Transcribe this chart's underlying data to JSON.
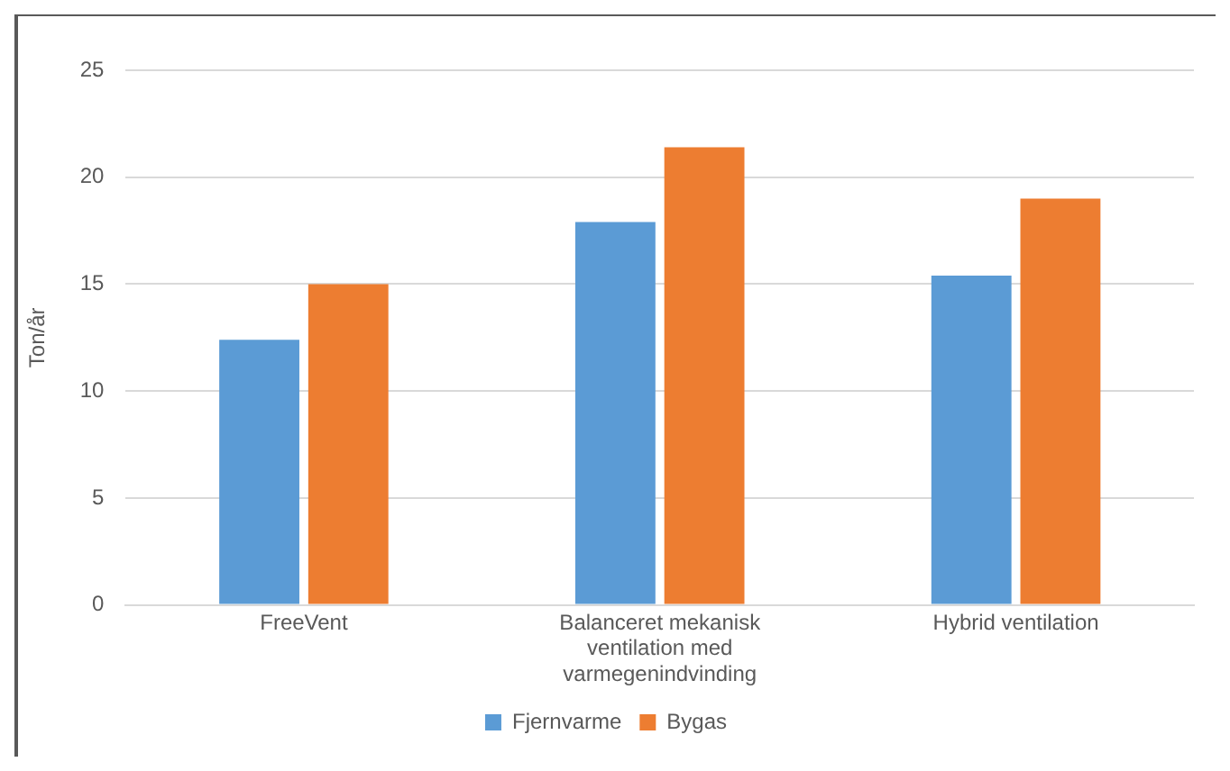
{
  "chart_data": {
    "type": "bar",
    "ylabel": "Ton/år",
    "categories": [
      "FreeVent",
      "Balanceret mekanisk ventilation med varmegenindvinding",
      "Hybrid ventilation"
    ],
    "series": [
      {
        "name": "Fjernvarme",
        "color": "#5b9bd5",
        "values": [
          12.4,
          17.9,
          15.4
        ]
      },
      {
        "name": "Bygas",
        "color": "#ed7d31",
        "values": [
          15.0,
          21.4,
          19.0
        ]
      }
    ],
    "ylim": [
      0,
      25
    ],
    "yticks": [
      0,
      5,
      10,
      15,
      20,
      25
    ],
    "grid": "y",
    "legend": "bottom"
  }
}
